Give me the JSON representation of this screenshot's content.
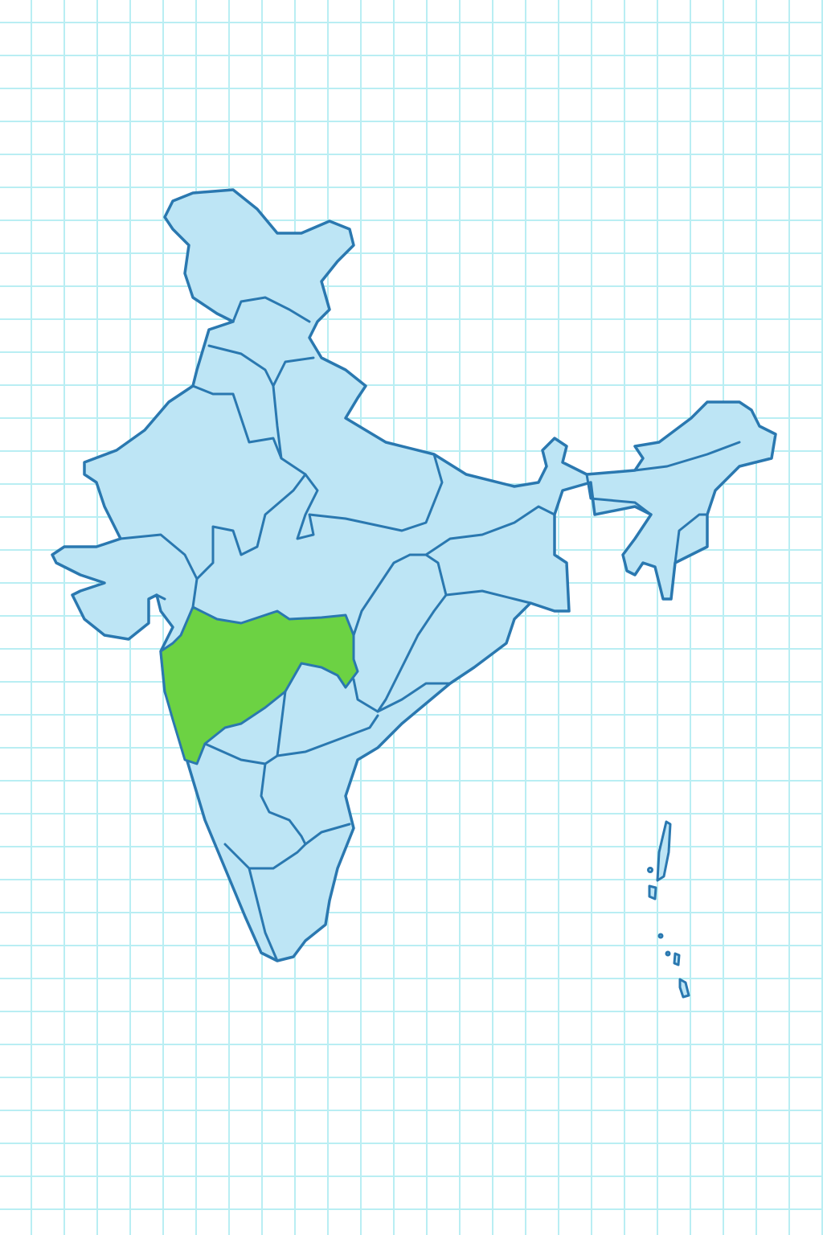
{
  "map": {
    "colors": {
      "background": "#ffffff",
      "grid": "#b9eef3",
      "land_fill": "#bde5f5",
      "border_stroke": "#2a78b0",
      "highlight_fill": "#6cd243"
    },
    "highlighted_regions": 1
  }
}
